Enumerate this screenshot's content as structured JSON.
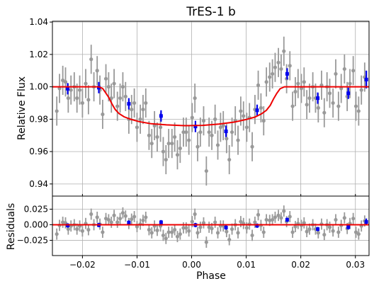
{
  "chart_data": [
    {
      "type": "scatter",
      "title": "TrES-1 b",
      "xlabel": "",
      "ylabel": "Relative Flux",
      "xlim": [
        -0.0255,
        0.0325
      ],
      "ylim": [
        0.9325,
        1.0405
      ],
      "yticks": [
        0.94,
        0.96,
        0.98,
        1.0,
        1.02,
        1.04
      ],
      "ytick_labels": [
        "0.94",
        "0.96",
        "0.98",
        "1.00",
        "1.02",
        "1.04"
      ],
      "grid": true,
      "colors": {
        "raw": "#999999",
        "binned": "#0000ee",
        "model": "#ee0000"
      },
      "series": [
        {
          "role": "raw",
          "x": [
            -0.0247,
            -0.0242,
            -0.0236,
            -0.0231,
            -0.0226,
            -0.0221,
            -0.0215,
            -0.021,
            -0.0205,
            -0.02,
            -0.0194,
            -0.0189,
            -0.0184,
            -0.0179,
            -0.0173,
            -0.0168,
            -0.0163,
            -0.0157,
            -0.0152,
            -0.0147,
            -0.0142,
            -0.0136,
            -0.0131,
            -0.0126,
            -0.0121,
            -0.0115,
            -0.011,
            -0.0105,
            -0.01,
            -0.0094,
            -0.0089,
            -0.0084,
            -0.0078,
            -0.0073,
            -0.0068,
            -0.0063,
            -0.0057,
            -0.0052,
            -0.0047,
            -0.0042,
            -0.0036,
            -0.0031,
            -0.0026,
            -0.0021,
            -0.0015,
            -0.001,
            -0.0005,
            0.0001,
            0.0006,
            0.0011,
            0.0016,
            0.0022,
            0.0027,
            0.0032,
            0.0037,
            0.0043,
            0.0048,
            0.0053,
            0.0058,
            0.0064,
            0.0069,
            0.0074,
            0.008,
            0.0085,
            0.009,
            0.0095,
            0.0101,
            0.0106,
            0.0111,
            0.0116,
            0.0122,
            0.0127,
            0.0132,
            0.0137,
            0.0143,
            0.0148,
            0.0153,
            0.0159,
            0.0164,
            0.0169,
            0.0174,
            0.018,
            0.0185,
            0.019,
            0.0195,
            0.0201,
            0.0206,
            0.0211,
            0.0216,
            0.0222,
            0.0227,
            0.0232,
            0.0238,
            0.0243,
            0.0248,
            0.0253,
            0.0259,
            0.0264,
            0.0269,
            0.0274,
            0.028,
            0.0285,
            0.029,
            0.0296,
            0.0301,
            0.0306,
            0.0311,
            0.0317
          ],
          "y": [
            0.985,
            0.999,
            1.004,
            1.003,
            0.993,
            0.998,
            1.0,
            0.993,
            0.998,
            0.99,
            1.002,
            0.992,
            1.017,
            1.0,
            1.01,
            0.998,
            0.983,
            1.005,
            1.0,
            0.993,
            1.002,
            0.988,
            0.993,
            1.0,
            0.994,
            0.98,
            0.986,
            0.99,
            0.975,
            0.98,
            0.986,
            0.99,
            0.97,
            0.965,
            0.976,
            0.969,
            0.975,
            0.96,
            0.955,
            0.965,
            0.965,
            0.969,
            0.958,
            0.962,
            0.972,
            0.972,
            0.967,
            0.981,
            0.993,
            0.963,
            0.972,
            0.979,
            0.948,
            0.972,
            0.97,
            0.98,
            0.964,
            0.975,
            0.976,
            0.968,
            0.955,
            0.972,
            0.979,
            0.967,
            0.985,
            0.982,
            0.975,
            0.981,
            0.963,
            0.986,
            1.001,
            0.987,
            0.979,
            1.003,
            1.006,
            1.008,
            1.012,
            1.015,
            1.011,
            1.022,
            1.005,
            1.013,
            0.988,
            0.997,
            1.002,
            0.999,
            1.003,
            0.989,
            0.993,
            1.0,
            0.993,
            0.987,
            1.001,
            0.984,
            1.0,
            0.996,
            0.99,
            1.008,
            0.988,
            0.999,
            1.011,
            0.994,
            1.002,
            1.01,
            0.988,
            0.985,
            0.998,
            1.006
          ],
          "yerr": 0.009
        },
        {
          "role": "binned",
          "x": [
            -0.0227,
            -0.017,
            -0.0115,
            -0.0056,
            0.0007,
            0.0063,
            0.012,
            0.0175,
            0.0231,
            0.0287,
            0.032
          ],
          "y": [
            0.9988,
            0.9995,
            0.9895,
            0.982,
            0.9755,
            0.9725,
            0.9855,
            1.008,
            0.993,
            0.996,
            1.0045
          ],
          "yerr": [
            0.0035,
            0.0035,
            0.0035,
            0.0035,
            0.0035,
            0.0035,
            0.0035,
            0.0035,
            0.0035,
            0.0035,
            0.0055
          ]
        },
        {
          "role": "model",
          "x": [
            -0.0255,
            -0.017,
            -0.0163,
            -0.0158,
            -0.0152,
            -0.0146,
            -0.014,
            -0.0133,
            -0.0124,
            -0.0112,
            -0.0096,
            -0.0074,
            -0.0046,
            -0.0012,
            0.002,
            0.005,
            0.0078,
            0.01,
            0.0116,
            0.0128,
            0.0137,
            0.0144,
            0.015,
            0.0156,
            0.0162,
            0.017,
            0.0325
          ],
          "y": [
            1.0,
            1.0,
            0.999,
            0.9965,
            0.9935,
            0.9895,
            0.986,
            0.9835,
            0.9815,
            0.98,
            0.9785,
            0.9772,
            0.9765,
            0.976,
            0.9762,
            0.977,
            0.9782,
            0.9798,
            0.9813,
            0.9833,
            0.9855,
            0.9885,
            0.9925,
            0.996,
            0.9988,
            1.0,
            1.0
          ]
        }
      ]
    },
    {
      "type": "scatter",
      "title": "",
      "xlabel": "Phase",
      "ylabel": "Residuals",
      "xlim": [
        -0.0255,
        0.0325
      ],
      "ylim": [
        -0.0495,
        0.046
      ],
      "xticks": [
        -0.02,
        -0.01,
        0.0,
        0.01,
        0.02,
        0.03
      ],
      "xtick_labels": [
        "−0.02",
        "−0.01",
        "0.00",
        "0.01",
        "0.02",
        "0.03"
      ],
      "yticks": [
        -0.025,
        0.0,
        0.025
      ],
      "ytick_labels": [
        "−0.025",
        "0.000",
        "0.025"
      ],
      "grid": true,
      "series": [
        {
          "role": "raw",
          "x": [
            -0.0247,
            -0.0242,
            -0.0236,
            -0.0231,
            -0.0226,
            -0.0221,
            -0.0215,
            -0.021,
            -0.0205,
            -0.02,
            -0.0194,
            -0.0189,
            -0.0184,
            -0.0179,
            -0.0173,
            -0.0168,
            -0.0163,
            -0.0157,
            -0.0152,
            -0.0147,
            -0.0142,
            -0.0136,
            -0.0131,
            -0.0126,
            -0.0121,
            -0.0115,
            -0.011,
            -0.0105,
            -0.01,
            -0.0094,
            -0.0089,
            -0.0084,
            -0.0078,
            -0.0073,
            -0.0068,
            -0.0063,
            -0.0057,
            -0.0052,
            -0.0047,
            -0.0042,
            -0.0036,
            -0.0031,
            -0.0026,
            -0.0021,
            -0.0015,
            -0.001,
            -0.0005,
            0.0001,
            0.0006,
            0.0011,
            0.0016,
            0.0022,
            0.0027,
            0.0032,
            0.0037,
            0.0043,
            0.0048,
            0.0053,
            0.0058,
            0.0064,
            0.0069,
            0.0074,
            0.008,
            0.0085,
            0.009,
            0.0095,
            0.0101,
            0.0106,
            0.0111,
            0.0116,
            0.0122,
            0.0127,
            0.0132,
            0.0137,
            0.0143,
            0.0148,
            0.0153,
            0.0159,
            0.0164,
            0.0169,
            0.0174,
            0.018,
            0.0185,
            0.019,
            0.0195,
            0.0201,
            0.0206,
            0.0211,
            0.0216,
            0.0222,
            0.0227,
            0.0232,
            0.0238,
            0.0243,
            0.0248,
            0.0253,
            0.0259,
            0.0264,
            0.0269,
            0.0274,
            0.028,
            0.0285,
            0.029,
            0.0296,
            0.0301,
            0.0306,
            0.0311,
            0.0317
          ],
          "y": [
            -0.015,
            -0.001,
            0.004,
            0.003,
            -0.007,
            -0.002,
            0.0,
            -0.007,
            -0.002,
            -0.01,
            0.002,
            -0.008,
            0.017,
            0.0,
            0.012,
            0.001,
            -0.012,
            0.01,
            0.008,
            0.004,
            0.015,
            0.004,
            0.01,
            0.019,
            0.014,
            0.002,
            0.009,
            0.013,
            -0.003,
            0.001,
            0.007,
            0.012,
            -0.008,
            -0.013,
            -0.002,
            -0.009,
            -0.002,
            -0.017,
            -0.022,
            -0.012,
            -0.012,
            -0.008,
            -0.019,
            -0.015,
            -0.005,
            -0.005,
            -0.01,
            0.005,
            0.017,
            -0.013,
            -0.004,
            0.003,
            -0.028,
            -0.004,
            -0.006,
            0.004,
            -0.013,
            -0.002,
            -0.002,
            -0.011,
            -0.024,
            -0.007,
            0.0,
            -0.013,
            0.005,
            0.002,
            -0.005,
            0.001,
            -0.017,
            0.004,
            0.016,
            -0.001,
            -0.012,
            0.008,
            0.007,
            0.008,
            0.012,
            0.015,
            0.011,
            0.022,
            0.005,
            0.013,
            -0.012,
            -0.003,
            0.002,
            -0.001,
            0.003,
            -0.011,
            -0.007,
            0.0,
            -0.007,
            -0.013,
            0.001,
            -0.016,
            0.0,
            -0.004,
            -0.01,
            0.008,
            -0.012,
            -0.001,
            0.011,
            -0.006,
            0.002,
            0.01,
            -0.012,
            -0.015,
            -0.002,
            0.006
          ],
          "yerr": 0.009
        },
        {
          "role": "binned",
          "x": [
            -0.0227,
            -0.017,
            -0.0115,
            -0.0056,
            0.0007,
            0.0063,
            0.012,
            0.0175,
            0.0231,
            0.0287,
            0.032
          ],
          "y": [
            -0.0012,
            -0.0005,
            0.0035,
            0.004,
            -0.0005,
            -0.0045,
            -0.0015,
            0.008,
            -0.007,
            -0.004,
            0.0045
          ],
          "yerr": [
            0.0035,
            0.0035,
            0.0035,
            0.0035,
            0.0035,
            0.0035,
            0.0035,
            0.0035,
            0.0035,
            0.0035,
            0.0055
          ]
        },
        {
          "role": "model",
          "x": [
            -0.0255,
            0.0325
          ],
          "y": [
            0.0,
            0.0
          ]
        }
      ]
    }
  ]
}
